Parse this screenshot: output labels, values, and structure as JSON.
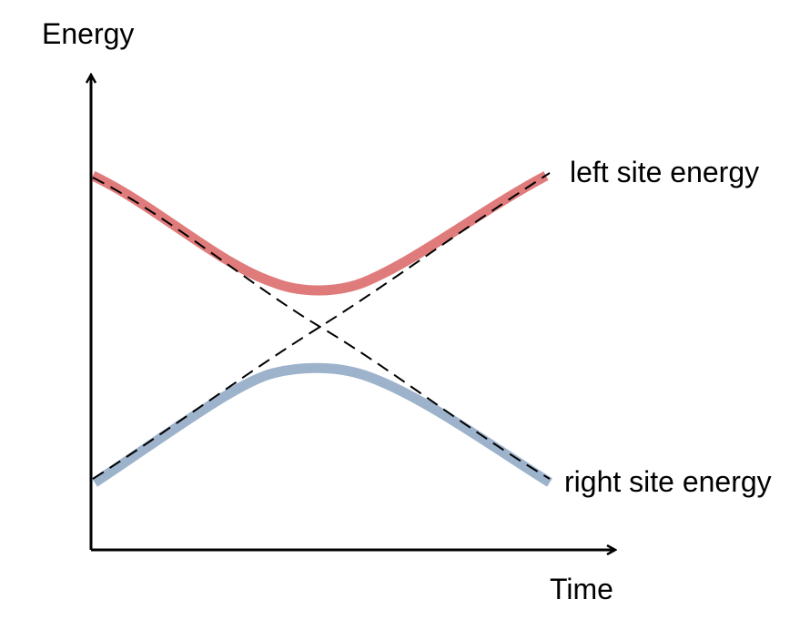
{
  "axes": {
    "y_label": "Energy",
    "x_label": "Time"
  },
  "labels": {
    "upper_curve": "left site energy",
    "lower_curve": "right site energy"
  },
  "colors": {
    "axis": "#000000",
    "upper_curve": "#e07b7b",
    "lower_curve": "#9db3cc",
    "diabatic_dashes": "#000000"
  }
}
